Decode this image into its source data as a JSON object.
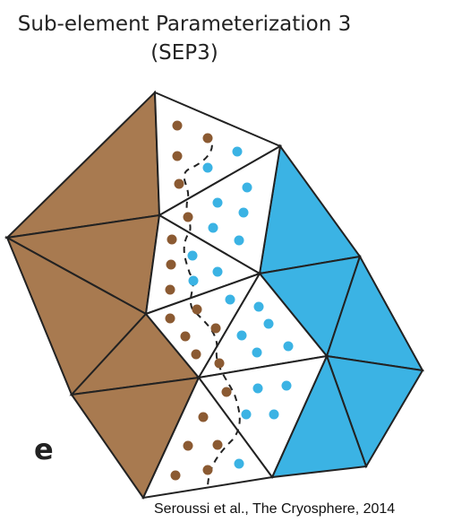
{
  "figure": {
    "title_line1": "Sub-element Parameterization 3",
    "title_line2": "(SEP3)",
    "panel_label": "e",
    "credit": "Seroussi et al., The Cryosphere, 2014"
  },
  "colors": {
    "grounded": "#a87a50",
    "floating": "#3bb3e4",
    "partial": "#ffffff",
    "edge": "#222222",
    "grounded_dot": "#8b5a32",
    "floating_dot": "#3bb3e4",
    "grounding_line": "#222222"
  }
}
